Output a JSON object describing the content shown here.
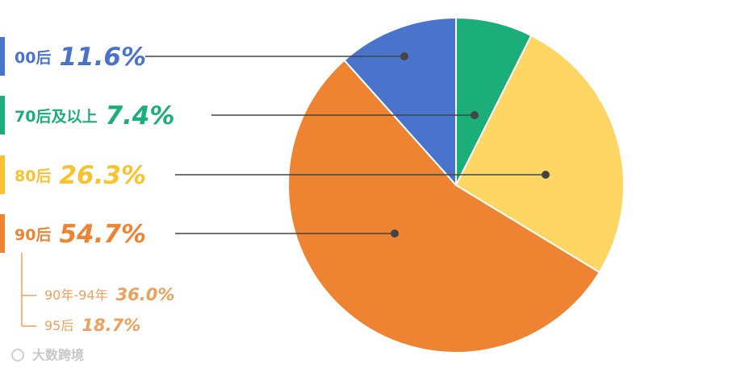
{
  "chart_data": {
    "type": "pie",
    "categories": [
      "00后",
      "70后及以上",
      "80后",
      "90后"
    ],
    "values": [
      11.6,
      7.4,
      26.3,
      54.7
    ],
    "value_labels": [
      "11.6%",
      "7.4%",
      "26.3%",
      "54.7%"
    ],
    "colors": [
      "#4a74cc",
      "#1bae7a",
      "#fdd663",
      "#ee8431"
    ],
    "label_colors": [
      "#4a74cc",
      "#1bae7a",
      "#f9c22e",
      "#ee8431"
    ],
    "breakdown": {
      "categories": [
        "90年-94年",
        "95后"
      ],
      "values": [
        36.0,
        18.7
      ],
      "value_labels": [
        "36.0%",
        "18.7%"
      ],
      "color": "#eea05c"
    }
  },
  "watermark": "大数跨境"
}
